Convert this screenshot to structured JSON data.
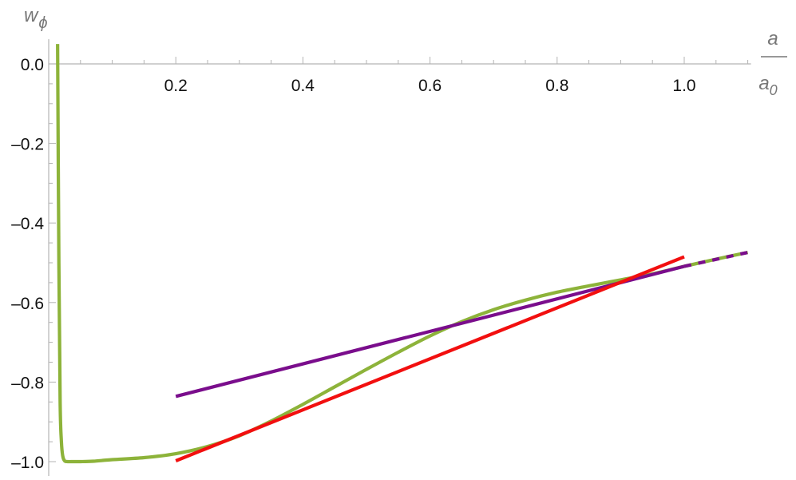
{
  "chart_data": {
    "type": "line",
    "title": "",
    "xlabel": {
      "numerator": "a",
      "denominator": "a",
      "denominator_sub": "0"
    },
    "ylabel": {
      "base": "w",
      "sub": "ϕ"
    },
    "xlim": [
      0,
      1.1
    ],
    "ylim": [
      -1.02,
      0.05
    ],
    "x_ticks": [
      0.2,
      0.4,
      0.6,
      0.8,
      1.0
    ],
    "x_tick_labels": [
      "0.2",
      "0.4",
      "0.6",
      "0.8",
      "1.0"
    ],
    "y_ticks": [
      0.0,
      -0.2,
      -0.4,
      -0.6,
      -0.8,
      -1.0
    ],
    "y_tick_labels": [
      "0.0",
      "–0.2",
      "–0.4",
      "–0.6",
      "–0.8",
      "–1.0"
    ],
    "grid": false,
    "series": [
      {
        "color": "#8db33a",
        "style": "solid",
        "x": [
          0.014,
          0.016,
          0.018,
          0.02,
          0.022,
          0.025,
          0.03,
          0.035,
          0.04,
          0.05,
          0.07,
          0.1,
          0.15,
          0.2,
          0.25,
          0.3,
          0.35,
          0.4,
          0.45,
          0.5,
          0.55,
          0.6,
          0.65,
          0.7,
          0.75,
          0.8,
          0.85,
          0.9,
          0.95,
          1.0,
          1.05,
          1.1
        ],
        "y": [
          0.05,
          -0.5,
          -0.85,
          -0.95,
          -0.985,
          -0.998,
          -1.0,
          -1.0,
          -1.0,
          -1.0,
          -0.999,
          -0.995,
          -0.99,
          -0.98,
          -0.962,
          -0.935,
          -0.898,
          -0.856,
          -0.812,
          -0.768,
          -0.725,
          -0.684,
          -0.648,
          -0.618,
          -0.594,
          -0.574,
          -0.558,
          -0.543,
          -0.528,
          -0.509,
          -0.491,
          -0.474
        ]
      },
      {
        "color": "#7a0d8c",
        "style": "solid",
        "x": [
          0.2,
          1.0
        ],
        "y": [
          -0.836,
          -0.509
        ]
      },
      {
        "color": "#7a0d8c",
        "style": "dashed",
        "x": [
          1.0,
          1.1
        ],
        "y": [
          -0.509,
          -0.474
        ]
      },
      {
        "color": "#f20f0f",
        "style": "solid",
        "x": [
          0.2,
          1.0
        ],
        "y": [
          -0.998,
          -0.485
        ]
      }
    ]
  }
}
